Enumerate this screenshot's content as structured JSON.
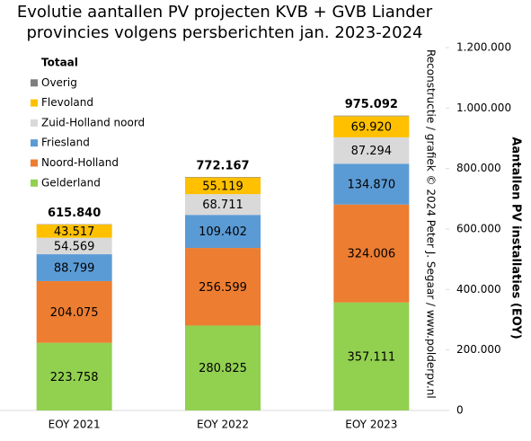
{
  "chart_data": {
    "type": "stacked-bar",
    "title": [
      "Evolutie aantallen PV projecten KVB + GVB Liander",
      "provincies volgens persberichten jan. 2023-2024"
    ],
    "y_label": "Aantallen PV installaties  (EOY)",
    "annotation": "Reconstructie / grafiek © 2024 Peter J. Segaar / www.polderpv.nl",
    "categories": [
      "EOY 2021",
      "EOY 2022",
      "EOY 2023"
    ],
    "series": [
      {
        "name": "Gelderland",
        "color": "#92d050",
        "values": [
          223758,
          280825,
          357111
        ],
        "value_labels": [
          "223.758",
          "280.825",
          "357.111"
        ]
      },
      {
        "name": "Noord-Holland",
        "color": "#ed7d31",
        "values": [
          204075,
          256599,
          324006
        ],
        "value_labels": [
          "204.075",
          "256.599",
          "324.006"
        ]
      },
      {
        "name": "Friesland",
        "color": "#5b9bd5",
        "values": [
          88799,
          109402,
          134870
        ],
        "value_labels": [
          "88.799",
          "109.402",
          "134.870"
        ]
      },
      {
        "name": "Zuid-Holland noord",
        "color": "#d9d9d9",
        "values": [
          54569,
          68711,
          87294
        ],
        "value_labels": [
          "54.569",
          "68.711",
          "87.294"
        ]
      },
      {
        "name": "Flevoland",
        "color": "#ffc000",
        "values": [
          43517,
          55119,
          69920
        ],
        "value_labels": [
          "43.517",
          "55.119",
          "69.920"
        ]
      },
      {
        "name": "Overig",
        "color": "#7f7f7f",
        "values": [
          1122,
          1511,
          1891
        ]
      }
    ],
    "totals": {
      "name": "Totaal",
      "values": [
        615840,
        772167,
        975092
      ],
      "value_labels": [
        "615.840",
        "772.167",
        "975.092"
      ]
    },
    "ylim": [
      0,
      1200000
    ],
    "yticks": [
      0,
      {
        "value": 200000,
        "label": "200.000"
      },
      {
        "value": 400000,
        "label": "400.000"
      },
      {
        "value": 600000,
        "label": "600.000"
      },
      {
        "value": 800000,
        "label": "800.000"
      },
      {
        "value": 1000000,
        "label": "1.000.000"
      },
      {
        "value": 1200000,
        "label": "1.200.000"
      }
    ],
    "y_axis_side": "right",
    "legend": "top-left"
  }
}
